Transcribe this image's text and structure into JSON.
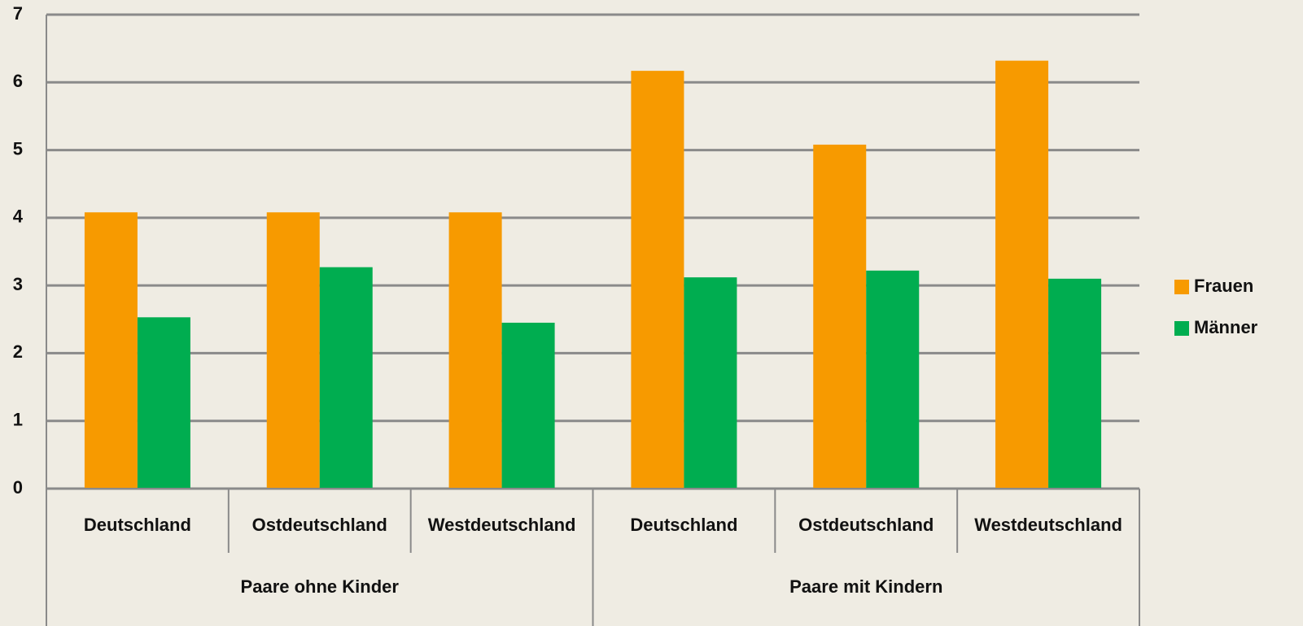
{
  "chart_data": {
    "type": "bar",
    "category_groups": [
      {
        "name": "Paare ohne Kinder",
        "categories": [
          "Deutschland",
          "Ostdeutschland",
          "Westdeutschland"
        ]
      },
      {
        "name": "Paare mit Kindern",
        "categories": [
          "Deutschland",
          "Ostdeutschland",
          "Westdeutschland"
        ]
      }
    ],
    "series": [
      {
        "name": "Frauen",
        "color": "#f79a00",
        "values": [
          4.08,
          4.08,
          4.08,
          6.17,
          5.08,
          6.32
        ]
      },
      {
        "name": "Männer",
        "color": "#00ad50",
        "values": [
          2.53,
          3.27,
          2.45,
          3.12,
          3.22,
          3.1
        ]
      }
    ],
    "ylim": [
      0,
      7
    ],
    "yticks": [
      0,
      1,
      2,
      3,
      4,
      5,
      6,
      7
    ],
    "grid": true,
    "legend": "right"
  }
}
